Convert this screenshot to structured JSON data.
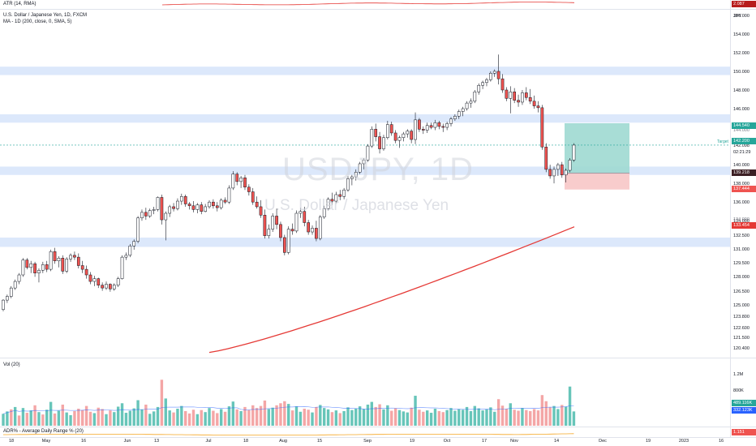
{
  "colors": {
    "up": "#26a69a",
    "down": "#ef5350",
    "ma": "#e53935",
    "zone": "#d6e4fa",
    "target": "#26a69a",
    "stop": "#f7c6c6",
    "adr": "#f5a623",
    "volUp": "#67c5b9",
    "volDown": "#f4a6a6",
    "atr": "#e53935"
  },
  "atr_pane": {
    "label": "ATR (14, RMA)",
    "value": "2.087"
  },
  "main_pane": {
    "symbol_line": "U.S. Dollar / Japanese Yen, 1D, FXCM",
    "indicator_line": "MA - 1D (200, close, 0, SMA, 5)",
    "watermark_symbol": "USDJPY, 1D",
    "watermark_name": "U.S. Dollar / Japanese Yen",
    "currency": "JPY",
    "target_label": "Target",
    "countdown": "02:21:29"
  },
  "price_scale": {
    "ticks": [
      "156.000",
      "154.000",
      "152.000",
      "150.000",
      "148.000",
      "146.000",
      "142.098",
      "140.000",
      "138.000",
      "136.000",
      "134.000",
      "132.500",
      "131.000",
      "129.500",
      "128.000",
      "126.500",
      "125.000",
      "123.800",
      "122.600",
      "121.500",
      "120.400"
    ],
    "partial_tick": "144.000",
    "partial_tick_2": "134.000",
    "badges": {
      "target": "144.540",
      "close": "142.200",
      "entry": "139.218",
      "stop": "137.444",
      "ma": "133.454"
    }
  },
  "volume_pane": {
    "label": "Vol (20)",
    "ticks": [
      "1.2M",
      "800K"
    ],
    "badges": [
      "489.116K",
      "332.123K"
    ]
  },
  "adr_pane": {
    "label": "ADR% - Average Daily Range % (20)",
    "value": "1.151"
  },
  "time_axis": [
    "18",
    "May",
    "16",
    "Jun",
    "13",
    "Jul",
    "18",
    "Aug",
    "15",
    "Sep",
    "19",
    "Oct",
    "17",
    "Nov",
    "14",
    "Dec",
    "19",
    "2023",
    "16"
  ],
  "chart_data": {
    "type": "candlestick",
    "symbol": "USDJPY",
    "interval": "1D",
    "price_range": [
      119.5,
      158.5
    ],
    "horizontal_zones": [
      [
        149.7,
        150.6
      ],
      [
        144.6,
        145.5
      ],
      [
        139.0,
        139.9
      ],
      [
        131.3,
        132.3
      ]
    ],
    "position": {
      "entry": 139.218,
      "target": 144.54,
      "stop": 137.444
    },
    "ma200_ends": [
      120.0,
      133.454
    ],
    "candles": [
      [
        124.6,
        125.7,
        124.4,
        125.6
      ],
      [
        125.6,
        126.2,
        125.3,
        126.0
      ],
      [
        126.0,
        127.1,
        125.8,
        126.9
      ],
      [
        126.9,
        127.8,
        126.7,
        127.6
      ],
      [
        127.6,
        128.5,
        127.3,
        128.3
      ],
      [
        128.3,
        130.1,
        128.1,
        129.9
      ],
      [
        129.9,
        130.1,
        128.9,
        129.1
      ],
      [
        129.1,
        129.8,
        128.5,
        129.5
      ],
      [
        129.5,
        129.7,
        128.1,
        128.5
      ],
      [
        128.5,
        129.0,
        127.5,
        128.8
      ],
      [
        128.8,
        129.7,
        128.5,
        129.4
      ],
      [
        129.4,
        129.8,
        128.6,
        128.9
      ],
      [
        128.9,
        131.0,
        128.7,
        130.8
      ],
      [
        130.8,
        131.2,
        129.5,
        129.8
      ],
      [
        129.8,
        130.3,
        129.1,
        130.1
      ],
      [
        130.1,
        130.4,
        128.4,
        128.7
      ],
      [
        128.7,
        130.2,
        128.5,
        130.0
      ],
      [
        130.0,
        130.6,
        129.7,
        130.4
      ],
      [
        130.4,
        130.8,
        129.9,
        130.2
      ],
      [
        130.2,
        130.6,
        129.0,
        129.3
      ],
      [
        129.3,
        129.8,
        128.5,
        128.9
      ],
      [
        128.9,
        129.3,
        127.9,
        128.3
      ],
      [
        128.3,
        128.6,
        127.3,
        127.6
      ],
      [
        127.6,
        128.2,
        127.1,
        127.9
      ],
      [
        127.9,
        128.0,
        126.9,
        127.2
      ],
      [
        127.2,
        127.5,
        126.6,
        126.9
      ],
      [
        126.9,
        127.6,
        126.7,
        127.3
      ],
      [
        127.3,
        127.4,
        126.5,
        126.8
      ],
      [
        126.8,
        127.4,
        126.6,
        127.2
      ],
      [
        127.2,
        128.1,
        127.0,
        127.9
      ],
      [
        127.9,
        130.4,
        127.8,
        130.2
      ],
      [
        130.2,
        130.7,
        129.9,
        130.4
      ],
      [
        130.4,
        131.6,
        130.2,
        131.4
      ],
      [
        131.4,
        132.1,
        131.0,
        131.9
      ],
      [
        131.9,
        134.6,
        131.7,
        134.4
      ],
      [
        134.4,
        135.3,
        134.1,
        135.0
      ],
      [
        135.0,
        135.5,
        134.2,
        134.6
      ],
      [
        134.6,
        135.4,
        134.4,
        135.2
      ],
      [
        135.2,
        135.6,
        134.8,
        135.3
      ],
      [
        135.3,
        136.7,
        135.1,
        136.6
      ],
      [
        136.6,
        136.9,
        133.7,
        134.2
      ],
      [
        134.2,
        135.1,
        132.0,
        134.9
      ],
      [
        134.9,
        135.8,
        134.5,
        135.6
      ],
      [
        135.6,
        136.0,
        135.1,
        135.4
      ],
      [
        135.4,
        136.5,
        135.2,
        136.2
      ],
      [
        136.2,
        137.0,
        135.8,
        136.7
      ],
      [
        136.7,
        136.9,
        135.6,
        135.9
      ],
      [
        135.9,
        136.1,
        135.3,
        135.7
      ],
      [
        135.7,
        136.2,
        135.0,
        135.3
      ],
      [
        135.3,
        136.0,
        134.9,
        135.8
      ],
      [
        135.8,
        136.1,
        134.8,
        135.1
      ],
      [
        135.1,
        135.9,
        135.0,
        135.6
      ],
      [
        135.6,
        136.3,
        135.4,
        136.1
      ],
      [
        136.1,
        136.4,
        135.4,
        135.7
      ],
      [
        135.7,
        136.1,
        135.1,
        135.5
      ],
      [
        135.5,
        136.5,
        135.3,
        136.3
      ],
      [
        136.3,
        136.6,
        135.9,
        136.1
      ],
      [
        136.1,
        137.9,
        135.9,
        137.6
      ],
      [
        137.6,
        139.4,
        137.4,
        139.1
      ],
      [
        139.1,
        139.3,
        137.9,
        138.3
      ],
      [
        138.3,
        138.9,
        137.6,
        138.7
      ],
      [
        138.7,
        139.0,
        137.4,
        137.7
      ],
      [
        137.7,
        138.0,
        136.8,
        137.2
      ],
      [
        137.2,
        137.6,
        135.8,
        136.1
      ],
      [
        136.1,
        136.7,
        135.4,
        135.6
      ],
      [
        135.6,
        136.3,
        134.4,
        134.7
      ],
      [
        134.7,
        135.3,
        132.2,
        132.5
      ],
      [
        132.5,
        133.7,
        132.2,
        133.2
      ],
      [
        133.2,
        134.9,
        132.9,
        134.6
      ],
      [
        134.6,
        135.4,
        133.2,
        133.7
      ],
      [
        133.7,
        134.0,
        131.9,
        132.3
      ],
      [
        132.3,
        132.6,
        130.4,
        130.7
      ],
      [
        130.7,
        133.5,
        130.5,
        133.2
      ],
      [
        133.2,
        133.8,
        132.6,
        133.0
      ],
      [
        133.0,
        135.2,
        132.8,
        134.9
      ],
      [
        134.9,
        135.5,
        134.4,
        135.1
      ],
      [
        135.1,
        135.6,
        133.5,
        133.9
      ],
      [
        133.9,
        134.2,
        132.6,
        132.9
      ],
      [
        132.9,
        133.6,
        132.6,
        133.3
      ],
      [
        133.3,
        134.1,
        131.9,
        132.2
      ],
      [
        132.2,
        134.7,
        132.0,
        134.5
      ],
      [
        134.5,
        135.7,
        134.3,
        135.4
      ],
      [
        135.4,
        136.6,
        135.2,
        136.4
      ],
      [
        136.4,
        137.1,
        135.8,
        136.2
      ],
      [
        136.2,
        137.2,
        136.0,
        136.9
      ],
      [
        136.9,
        137.4,
        136.3,
        136.7
      ],
      [
        136.7,
        137.6,
        136.4,
        137.4
      ],
      [
        137.4,
        138.9,
        137.2,
        138.6
      ],
      [
        138.6,
        139.0,
        137.9,
        138.8
      ],
      [
        138.8,
        139.6,
        138.4,
        139.3
      ],
      [
        139.3,
        140.4,
        139.1,
        140.2
      ],
      [
        140.2,
        140.8,
        139.6,
        140.6
      ],
      [
        140.6,
        142.3,
        140.4,
        142.1
      ],
      [
        142.1,
        144.2,
        141.9,
        143.9
      ],
      [
        143.9,
        144.5,
        142.6,
        143.1
      ],
      [
        143.1,
        143.6,
        141.3,
        141.8
      ],
      [
        141.8,
        143.3,
        141.6,
        143.0
      ],
      [
        143.0,
        144.8,
        142.8,
        144.4
      ],
      [
        144.4,
        144.7,
        143.2,
        143.5
      ],
      [
        143.5,
        143.8,
        142.4,
        142.7
      ],
      [
        142.7,
        143.2,
        141.9,
        143.0
      ],
      [
        143.0,
        143.6,
        142.6,
        143.4
      ],
      [
        143.4,
        143.9,
        143.0,
        143.7
      ],
      [
        143.7,
        143.9,
        142.4,
        142.8
      ],
      [
        142.8,
        145.7,
        142.3,
        144.9
      ],
      [
        144.9,
        145.1,
        143.6,
        143.9
      ],
      [
        143.9,
        144.2,
        143.4,
        143.8
      ],
      [
        143.8,
        144.6,
        143.5,
        144.3
      ],
      [
        144.3,
        144.6,
        143.9,
        144.1
      ],
      [
        144.1,
        144.9,
        143.8,
        144.6
      ],
      [
        144.6,
        144.8,
        143.9,
        144.2
      ],
      [
        144.2,
        144.5,
        143.6,
        144.1
      ],
      [
        144.1,
        144.7,
        143.8,
        144.5
      ],
      [
        144.5,
        145.2,
        144.2,
        145.0
      ],
      [
        145.0,
        145.5,
        144.8,
        145.3
      ],
      [
        145.3,
        146.0,
        145.0,
        145.8
      ],
      [
        145.8,
        146.3,
        145.3,
        146.1
      ],
      [
        146.1,
        146.9,
        145.9,
        146.7
      ],
      [
        146.7,
        147.2,
        146.2,
        146.9
      ],
      [
        146.9,
        148.1,
        146.7,
        147.9
      ],
      [
        147.9,
        148.8,
        147.6,
        148.6
      ],
      [
        148.6,
        149.1,
        148.2,
        148.9
      ],
      [
        148.9,
        149.4,
        148.5,
        149.2
      ],
      [
        149.2,
        150.1,
        149.0,
        149.9
      ],
      [
        149.9,
        150.3,
        149.5,
        150.1
      ],
      [
        150.1,
        151.9,
        148.7,
        149.3
      ],
      [
        149.3,
        149.8,
        147.8,
        148.1
      ],
      [
        148.1,
        148.4,
        146.9,
        147.2
      ],
      [
        147.2,
        148.5,
        145.6,
        147.9
      ],
      [
        147.9,
        148.3,
        146.7,
        147.0
      ],
      [
        147.0,
        147.6,
        146.3,
        146.8
      ],
      [
        146.8,
        148.1,
        146.5,
        147.8
      ],
      [
        147.8,
        148.4,
        147.0,
        147.3
      ],
      [
        147.3,
        148.2,
        146.6,
        146.9
      ],
      [
        146.9,
        147.5,
        146.1,
        146.4
      ],
      [
        146.4,
        146.9,
        145.7,
        146.2
      ],
      [
        146.2,
        146.5,
        141.7,
        142.0
      ],
      [
        142.0,
        142.4,
        139.3,
        139.6
      ],
      [
        139.6,
        140.1,
        138.6,
        138.9
      ],
      [
        138.9,
        139.9,
        138.1,
        139.6
      ],
      [
        139.6,
        140.3,
        138.9,
        140.1
      ],
      [
        140.1,
        140.4,
        138.7,
        139.0
      ],
      [
        139.0,
        139.7,
        138.2,
        139.5
      ],
      [
        139.5,
        140.8,
        139.3,
        140.6
      ],
      [
        140.6,
        142.4,
        140.4,
        142.2
      ]
    ],
    "volume": [
      [
        0.35,
        1
      ],
      [
        0.42,
        1
      ],
      [
        0.48,
        0
      ],
      [
        0.55,
        1
      ],
      [
        0.3,
        0
      ],
      [
        0.52,
        1
      ],
      [
        0.38,
        0
      ],
      [
        0.45,
        1
      ],
      [
        0.6,
        0
      ],
      [
        0.4,
        1
      ],
      [
        0.33,
        0
      ],
      [
        0.47,
        1
      ],
      [
        0.7,
        1
      ],
      [
        0.36,
        0
      ],
      [
        0.44,
        1
      ],
      [
        0.62,
        0
      ],
      [
        0.39,
        1
      ],
      [
        0.31,
        1
      ],
      [
        0.43,
        0
      ],
      [
        0.5,
        0
      ],
      [
        0.46,
        0
      ],
      [
        0.58,
        0
      ],
      [
        0.41,
        0
      ],
      [
        0.37,
        1
      ],
      [
        0.53,
        0
      ],
      [
        0.49,
        0
      ],
      [
        0.34,
        1
      ],
      [
        0.45,
        0
      ],
      [
        0.4,
        1
      ],
      [
        0.56,
        1
      ],
      [
        0.66,
        1
      ],
      [
        0.38,
        1
      ],
      [
        0.44,
        1
      ],
      [
        0.51,
        1
      ],
      [
        0.75,
        1
      ],
      [
        0.48,
        1
      ],
      [
        0.62,
        0
      ],
      [
        0.35,
        1
      ],
      [
        0.42,
        1
      ],
      [
        0.55,
        1
      ],
      [
        1.35,
        0
      ],
      [
        0.8,
        1
      ],
      [
        0.45,
        1
      ],
      [
        0.39,
        0
      ],
      [
        0.5,
        1
      ],
      [
        0.58,
        1
      ],
      [
        0.43,
        0
      ],
      [
        0.36,
        0
      ],
      [
        0.47,
        0
      ],
      [
        0.34,
        1
      ],
      [
        0.46,
        0
      ],
      [
        0.4,
        1
      ],
      [
        0.52,
        1
      ],
      [
        0.44,
        0
      ],
      [
        0.37,
        0
      ],
      [
        0.49,
        1
      ],
      [
        0.41,
        0
      ],
      [
        0.57,
        1
      ],
      [
        0.71,
        1
      ],
      [
        0.48,
        0
      ],
      [
        0.43,
        1
      ],
      [
        0.55,
        0
      ],
      [
        0.46,
        0
      ],
      [
        0.6,
        0
      ],
      [
        0.52,
        0
      ],
      [
        0.58,
        0
      ],
      [
        0.74,
        0
      ],
      [
        0.49,
        1
      ],
      [
        0.53,
        1
      ],
      [
        0.6,
        0
      ],
      [
        0.66,
        0
      ],
      [
        0.72,
        0
      ],
      [
        0.64,
        1
      ],
      [
        0.45,
        0
      ],
      [
        0.57,
        1
      ],
      [
        0.41,
        1
      ],
      [
        0.5,
        0
      ],
      [
        0.47,
        0
      ],
      [
        0.39,
        1
      ],
      [
        0.55,
        0
      ],
      [
        0.61,
        1
      ],
      [
        0.52,
        1
      ],
      [
        0.48,
        1
      ],
      [
        0.4,
        0
      ],
      [
        0.45,
        1
      ],
      [
        0.37,
        0
      ],
      [
        0.43,
        1
      ],
      [
        0.54,
        1
      ],
      [
        0.46,
        1
      ],
      [
        0.5,
        1
      ],
      [
        0.57,
        1
      ],
      [
        0.49,
        1
      ],
      [
        0.62,
        1
      ],
      [
        0.7,
        1
      ],
      [
        0.55,
        0
      ],
      [
        0.63,
        0
      ],
      [
        0.48,
        1
      ],
      [
        0.6,
        1
      ],
      [
        0.44,
        0
      ],
      [
        0.51,
        0
      ],
      [
        0.46,
        1
      ],
      [
        0.42,
        1
      ],
      [
        0.39,
        1
      ],
      [
        0.53,
        0
      ],
      [
        0.88,
        1
      ],
      [
        0.47,
        0
      ],
      [
        0.41,
        0
      ],
      [
        0.45,
        1
      ],
      [
        0.38,
        1
      ],
      [
        0.5,
        1
      ],
      [
        0.43,
        0
      ],
      [
        0.4,
        0
      ],
      [
        0.46,
        1
      ],
      [
        0.52,
        1
      ],
      [
        0.44,
        1
      ],
      [
        0.49,
        1
      ],
      [
        0.47,
        1
      ],
      [
        0.55,
        1
      ],
      [
        0.43,
        1
      ],
      [
        0.58,
        1
      ],
      [
        0.51,
        1
      ],
      [
        0.45,
        1
      ],
      [
        0.48,
        1
      ],
      [
        0.54,
        1
      ],
      [
        0.41,
        1
      ],
      [
        0.78,
        0
      ],
      [
        0.59,
        0
      ],
      [
        0.5,
        0
      ],
      [
        0.66,
        1
      ],
      [
        0.47,
        0
      ],
      [
        0.44,
        0
      ],
      [
        0.52,
        1
      ],
      [
        0.46,
        0
      ],
      [
        0.43,
        0
      ],
      [
        0.49,
        0
      ],
      [
        0.45,
        0
      ],
      [
        0.9,
        0
      ],
      [
        0.72,
        0
      ],
      [
        0.54,
        0
      ],
      [
        0.58,
        1
      ],
      [
        0.49,
        1
      ],
      [
        0.61,
        0
      ],
      [
        0.56,
        1
      ],
      [
        1.15,
        1
      ],
      [
        0.42,
        1
      ]
    ]
  }
}
